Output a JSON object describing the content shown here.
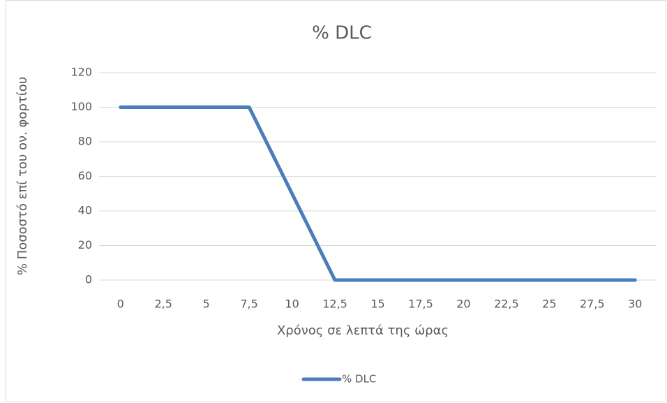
{
  "chart_data": {
    "type": "line",
    "title": "% DLC",
    "x_label": "Χρόνος σε λεπτά της ώρας",
    "y_label": "% Ποσοστό επί του ον. φορτίου",
    "categories": [
      "0",
      "2,5",
      "5",
      "7,5",
      "10",
      "12,5",
      "15",
      "17,5",
      "20",
      "22,5",
      "25",
      "27,5",
      "30"
    ],
    "series": [
      {
        "name": "% DLC",
        "color": "#4a7ebb",
        "values": [
          100,
          100,
          100,
          100,
          50,
          0,
          0,
          0,
          0,
          0,
          0,
          0,
          0
        ]
      }
    ],
    "ylim": [
      0,
      120
    ],
    "yticks": [
      0,
      20,
      40,
      60,
      80,
      100,
      120
    ],
    "grid": true,
    "legend": "bottom"
  }
}
